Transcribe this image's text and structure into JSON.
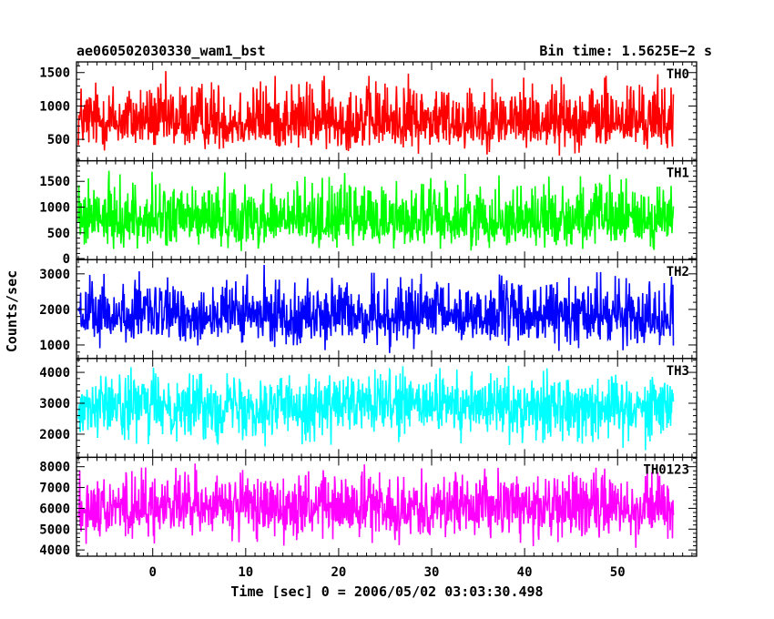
{
  "title_left": "ae060502030330_wam1_bst",
  "title_right": "Bin time: 1.5625E−2 s",
  "ylabel": "Counts/sec",
  "xlabel": "Time [sec] 0 = 2006/05/02 03:03:30.498",
  "chart_data": {
    "type": "line",
    "x_range": [
      -8.2,
      58.5
    ],
    "x_data_range": [
      -8.0,
      56.0
    ],
    "x_ticks": [
      0,
      10,
      20,
      30,
      40,
      50
    ],
    "panels": [
      {
        "name": "TH0",
        "color": "#ff0000",
        "ylim": [
          180,
          1660
        ],
        "y_ticks": [
          500,
          1000,
          1500
        ],
        "mean": 750,
        "min": 200,
        "max": 1650
      },
      {
        "name": "TH1",
        "color": "#00ff00",
        "ylim": [
          -20,
          1900
        ],
        "y_ticks": [
          0,
          500,
          1000,
          1500
        ],
        "mean": 720,
        "min": 50,
        "max": 1880
      },
      {
        "name": "TH2",
        "color": "#0000ff",
        "ylim": [
          620,
          3400
        ],
        "y_ticks": [
          1000,
          2000,
          3000
        ],
        "mean": 1800,
        "min": 700,
        "max": 3300
      },
      {
        "name": "TH3",
        "color": "#00ffff",
        "ylim": [
          1250,
          4450
        ],
        "y_ticks": [
          2000,
          3000,
          4000
        ],
        "mean": 2950,
        "min": 1350,
        "max": 4400
      },
      {
        "name": "TH0123",
        "color": "#ff00ff",
        "ylim": [
          3700,
          8450
        ],
        "y_ticks": [
          4000,
          5000,
          6000,
          7000,
          8000
        ],
        "mean": 6100,
        "min": 3850,
        "max": 8400
      }
    ]
  }
}
